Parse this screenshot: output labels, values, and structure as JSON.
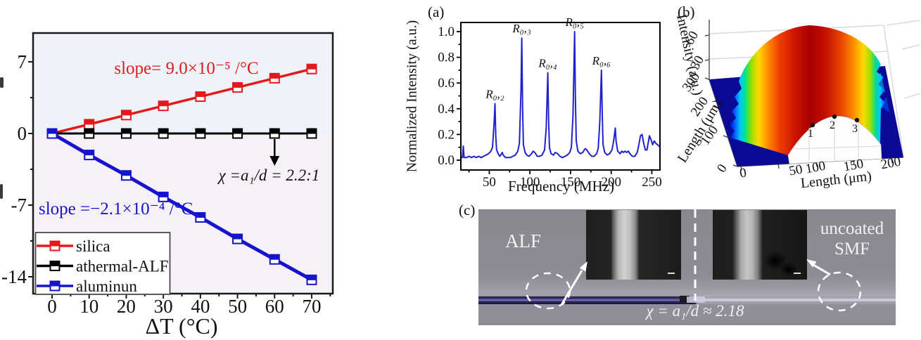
{
  "colors": {
    "red": "#e3191c",
    "blue": "#1414cd",
    "black": "#000000",
    "spectrum_blue": "#2121cf",
    "bg_upper": "#edf3f8",
    "bg_lower": "#f8f0f7",
    "floor_navy": "#0a0a96",
    "photo_text": "#f2f2f2"
  },
  "thermal": {
    "xlabel": "ΔT (°C)",
    "slope_red": "slope= 9.0×10⁻⁵ /°C",
    "slope_blue": "slope =−2.1×10⁻⁴ /°C",
    "annotation": "χ =a₁/d = 2.2:1"
  },
  "panel_a": {
    "tag": "(a)",
    "ylabel": "Normalized Intensity (a.u.)",
    "xlabel": "Frequency (MHz)"
  },
  "panel_b": {
    "tag": "(b)"
  },
  "panel_c": {
    "tag": "(c)",
    "label_left": "ALF",
    "label_right_line1": "uncoated",
    "label_right_line2": "SMF",
    "chi_text": "χ = a₁/d ≈ 2.18"
  },
  "chart_data": [
    {
      "type": "line",
      "xlabel": "ΔT (°C)",
      "ylabel": "",
      "x": [
        0,
        10,
        20,
        30,
        40,
        50,
        60,
        70
      ],
      "x_tick_labels": [
        "0",
        "10",
        "20",
        "30",
        "40",
        "50",
        "60",
        "70"
      ],
      "x_minor_ticks": [
        5,
        15,
        25,
        35,
        45,
        55,
        65,
        75
      ],
      "y_tick_values": [
        7,
        0,
        -7,
        -14
      ],
      "y_tick_labels": [
        "7",
        "0",
        "-7",
        "-14"
      ],
      "y_minor_ticks": [
        3.5,
        -3.5,
        -10.5
      ],
      "xlim": [
        -5,
        76
      ],
      "ylim": [
        -15.6,
        9.8
      ],
      "series": [
        {
          "name": "silica",
          "color": "#e3191c",
          "width": 3.5,
          "values": [
            0,
            0.9,
            1.8,
            2.7,
            3.6,
            4.5,
            5.4,
            6.3
          ],
          "slope_label": "slope= 9.0×10⁻⁵ /°C"
        },
        {
          "name": "athermal-ALF",
          "color": "#000000",
          "width": 3,
          "values": [
            0,
            0,
            0,
            0,
            0,
            0,
            0,
            0
          ],
          "slope_label": ""
        },
        {
          "name": "aluminun",
          "color": "#1414cd",
          "width": 5,
          "values": [
            0,
            -2.1,
            -4.1,
            -6.2,
            -8.2,
            -10.3,
            -12.3,
            -14.3
          ],
          "slope_label": "slope =−2.1×10⁻⁴ /°C"
        }
      ],
      "annotation": "χ =a₁/d = 2.2:1",
      "annotation_arrow_x": 60,
      "legend_position": "bottom-left",
      "legend": [
        "silica",
        "athermal-ALF",
        "aluminun"
      ]
    },
    {
      "type": "line",
      "title": "(a)",
      "xlabel": "Frequency (MHz)",
      "ylabel": "Normalized Intensity (a.u.)",
      "xlim": [
        15,
        260
      ],
      "ylim": [
        -0.08,
        1.07
      ],
      "x_ticks": [
        50,
        100,
        150,
        200,
        250
      ],
      "x_minor_ticks": [
        25,
        75,
        125,
        175,
        225
      ],
      "y_ticks": [
        "0.0",
        "0.2",
        "0.4",
        "0.6",
        "0.8",
        "1.0"
      ],
      "y_tick_values": [
        0.0,
        0.2,
        0.4,
        0.6,
        0.8,
        1.0
      ],
      "y_minor_ticks": [
        0.1,
        0.3,
        0.5,
        0.7,
        0.9
      ],
      "line_color": "#2121cf",
      "peaks": [
        {
          "label": "R₀,₂",
          "freq": 57,
          "value": 0.44
        },
        {
          "label": "R₀,₃",
          "freq": 90,
          "value": 0.95
        },
        {
          "label": "R₀,₄",
          "freq": 122,
          "value": 0.68
        },
        {
          "label": "R₀,₅",
          "freq": 155,
          "value": 1.0
        },
        {
          "label": "R₀,₆",
          "freq": 188,
          "value": 0.7
        }
      ],
      "points": [
        [
          15,
          0.02
        ],
        [
          17,
          0.02
        ],
        [
          18,
          0.11
        ],
        [
          19,
          0.02
        ],
        [
          22,
          0.02
        ],
        [
          25,
          0.03
        ],
        [
          28,
          0.02
        ],
        [
          31,
          0.03
        ],
        [
          34,
          0.02
        ],
        [
          37,
          0.03
        ],
        [
          40,
          0.02
        ],
        [
          43,
          0.03
        ],
        [
          46,
          0.04
        ],
        [
          49,
          0.05
        ],
        [
          52,
          0.07
        ],
        [
          54,
          0.1
        ],
        [
          56,
          0.3
        ],
        [
          57,
          0.44
        ],
        [
          58,
          0.18
        ],
        [
          59,
          0.08
        ],
        [
          61,
          0.05
        ],
        [
          63,
          0.03
        ],
        [
          65,
          0.05
        ],
        [
          66,
          0.06
        ],
        [
          67,
          0.04
        ],
        [
          70,
          0.02
        ],
        [
          73,
          0.02
        ],
        [
          76,
          0.02
        ],
        [
          79,
          0.03
        ],
        [
          82,
          0.04
        ],
        [
          85,
          0.07
        ],
        [
          87,
          0.13
        ],
        [
          89,
          0.55
        ],
        [
          90,
          0.95
        ],
        [
          91,
          0.4
        ],
        [
          92,
          0.12
        ],
        [
          94,
          0.06
        ],
        [
          96,
          0.04
        ],
        [
          99,
          0.03
        ],
        [
          102,
          0.05
        ],
        [
          104,
          0.07
        ],
        [
          106,
          0.06
        ],
        [
          109,
          0.03
        ],
        [
          112,
          0.03
        ],
        [
          115,
          0.04
        ],
        [
          118,
          0.08
        ],
        [
          120,
          0.25
        ],
        [
          122,
          0.68
        ],
        [
          123,
          0.3
        ],
        [
          124,
          0.1
        ],
        [
          126,
          0.05
        ],
        [
          129,
          0.04
        ],
        [
          131,
          0.06
        ],
        [
          134,
          0.05
        ],
        [
          137,
          0.03
        ],
        [
          140,
          0.02
        ],
        [
          143,
          0.03
        ],
        [
          146,
          0.04
        ],
        [
          149,
          0.06
        ],
        [
          151,
          0.1
        ],
        [
          153,
          0.35
        ],
        [
          155,
          1.0
        ],
        [
          156,
          0.45
        ],
        [
          157,
          0.15
        ],
        [
          159,
          0.07
        ],
        [
          162,
          0.05
        ],
        [
          165,
          0.06
        ],
        [
          168,
          0.09
        ],
        [
          170,
          0.08
        ],
        [
          173,
          0.05
        ],
        [
          176,
          0.03
        ],
        [
          179,
          0.03
        ],
        [
          182,
          0.05
        ],
        [
          184,
          0.09
        ],
        [
          186,
          0.3
        ],
        [
          188,
          0.7
        ],
        [
          189,
          0.35
        ],
        [
          190,
          0.12
        ],
        [
          192,
          0.06
        ],
        [
          195,
          0.04
        ],
        [
          198,
          0.05
        ],
        [
          201,
          0.08
        ],
        [
          203,
          0.15
        ],
        [
          205,
          0.25
        ],
        [
          206,
          0.15
        ],
        [
          208,
          0.07
        ],
        [
          211,
          0.05
        ],
        [
          213,
          0.07
        ],
        [
          215,
          0.06
        ],
        [
          217,
          0.07
        ],
        [
          219,
          0.06
        ],
        [
          221,
          0.07
        ],
        [
          223,
          0.05
        ],
        [
          226,
          0.03
        ],
        [
          229,
          0.03
        ],
        [
          232,
          0.06
        ],
        [
          234,
          0.12
        ],
        [
          236,
          0.19
        ],
        [
          238,
          0.2
        ],
        [
          240,
          0.13
        ],
        [
          242,
          0.08
        ],
        [
          244,
          0.08
        ],
        [
          246,
          0.15
        ],
        [
          247,
          0.19
        ],
        [
          249,
          0.16
        ],
        [
          251,
          0.12
        ],
        [
          253,
          0.15
        ],
        [
          255,
          0.13
        ],
        [
          257,
          0.12
        ],
        [
          259,
          0.11
        ],
        [
          260,
          0.1
        ]
      ]
    },
    {
      "type": "surface_3d",
      "title": "(b)",
      "zlabel": "Intensity (a.u.)",
      "z_ticks": [
        "60",
        "30"
      ],
      "depth_axis": {
        "label": "Length (μm)",
        "ticks": [
          "0",
          "100",
          "200",
          "300"
        ]
      },
      "x_axis": {
        "label": "Length (μm)",
        "ticks": [
          "0",
          "50",
          "100",
          "150",
          "200"
        ]
      },
      "surface": "dome-shaped intensity profile, jet colormap: red crown, rainbow flanks, dark blue floor",
      "marked_points": [
        {
          "label": "1"
        },
        {
          "label": "2"
        },
        {
          "label": "3"
        }
      ]
    }
  ]
}
